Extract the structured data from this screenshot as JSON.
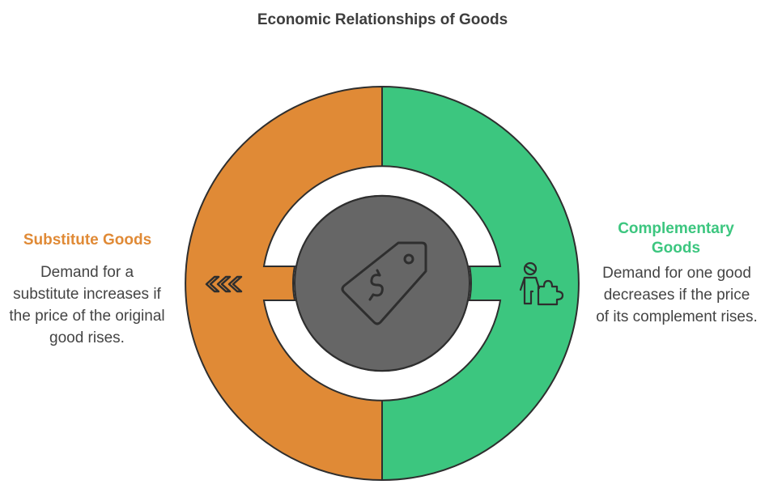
{
  "title": "Economic Relationships of Goods",
  "left": {
    "title": "Substitute Goods",
    "description": "Demand for a substitute increases if the price of the original good rises.",
    "color": "#e08a36",
    "icon": "triple-chevron-left-icon"
  },
  "right": {
    "title": "Complementary Goods",
    "description": "Demand for one good decreases if the price of its complement rises.",
    "color": "#3cc67f",
    "icon": "person-puzzle-icon"
  },
  "center": {
    "icon": "price-tag-icon",
    "color": "#666666"
  }
}
